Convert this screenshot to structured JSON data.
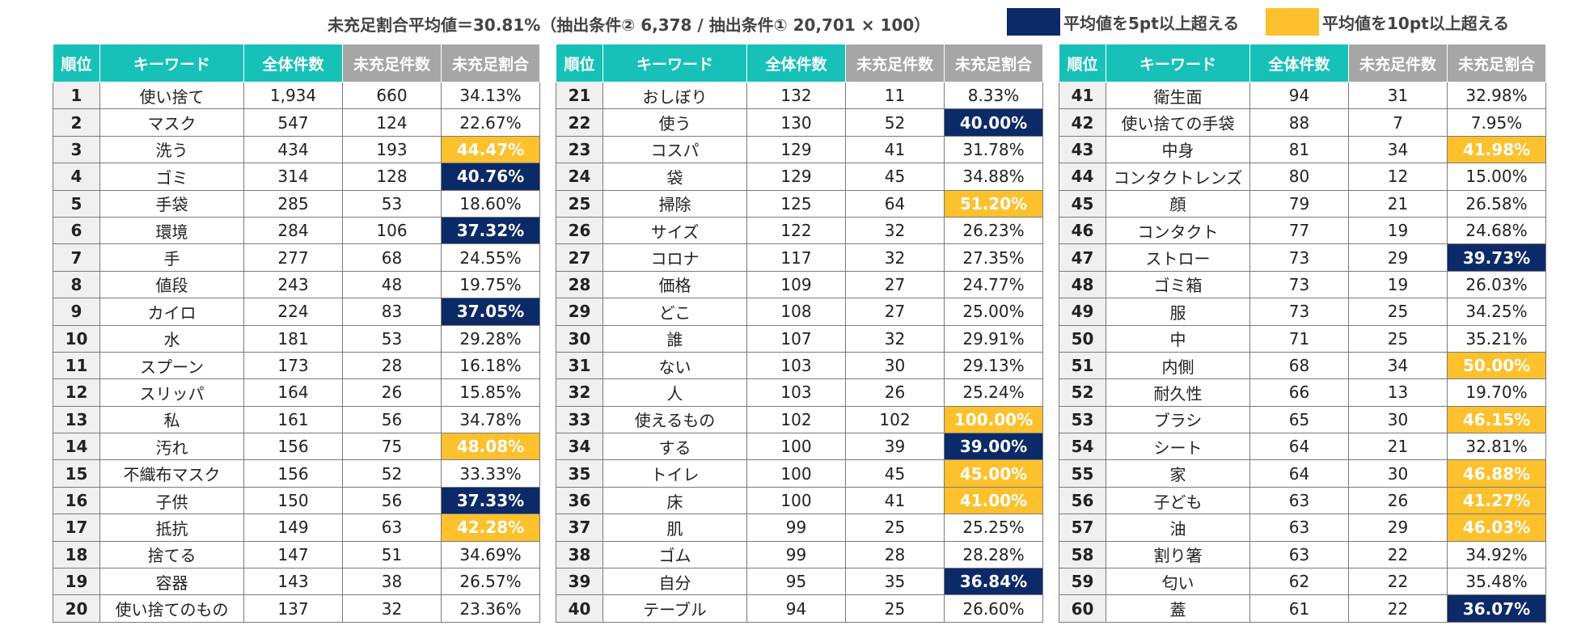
{
  "header": {
    "formula": "未充足割合平均値＝30.81%（抽出条件② 6,378 / 抽出条件① 20,701 × 100）",
    "legend": [
      {
        "label": "平均値を5pt以上超える",
        "color": "#0b2a67"
      },
      {
        "label": "平均値を10pt以上超える",
        "color": "#fcc12d"
      }
    ]
  },
  "columns": [
    "順位",
    "キーワード",
    "全体件数",
    "未充足件数",
    "未充足割合"
  ],
  "colors": {
    "header_teal": "#17c1b8",
    "header_gray": "#a6a6a6",
    "navy": "#0b2a67",
    "yellow": "#fcc12d"
  },
  "tables": [
    {
      "rows": [
        {
          "rank": "1",
          "keyword": "使い捨て",
          "total": "1,934",
          "unmet": "660",
          "rate": "34.13%",
          "hl": ""
        },
        {
          "rank": "2",
          "keyword": "マスク",
          "total": "547",
          "unmet": "124",
          "rate": "22.67%",
          "hl": ""
        },
        {
          "rank": "3",
          "keyword": "洗う",
          "total": "434",
          "unmet": "193",
          "rate": "44.47%",
          "hl": "yellow"
        },
        {
          "rank": "4",
          "keyword": "ゴミ",
          "total": "314",
          "unmet": "128",
          "rate": "40.76%",
          "hl": "navy"
        },
        {
          "rank": "5",
          "keyword": "手袋",
          "total": "285",
          "unmet": "53",
          "rate": "18.60%",
          "hl": ""
        },
        {
          "rank": "6",
          "keyword": "環境",
          "total": "284",
          "unmet": "106",
          "rate": "37.32%",
          "hl": "navy"
        },
        {
          "rank": "7",
          "keyword": "手",
          "total": "277",
          "unmet": "68",
          "rate": "24.55%",
          "hl": ""
        },
        {
          "rank": "8",
          "keyword": "値段",
          "total": "243",
          "unmet": "48",
          "rate": "19.75%",
          "hl": ""
        },
        {
          "rank": "9",
          "keyword": "カイロ",
          "total": "224",
          "unmet": "83",
          "rate": "37.05%",
          "hl": "navy"
        },
        {
          "rank": "10",
          "keyword": "水",
          "total": "181",
          "unmet": "53",
          "rate": "29.28%",
          "hl": ""
        },
        {
          "rank": "11",
          "keyword": "スプーン",
          "total": "173",
          "unmet": "28",
          "rate": "16.18%",
          "hl": ""
        },
        {
          "rank": "12",
          "keyword": "スリッパ",
          "total": "164",
          "unmet": "26",
          "rate": "15.85%",
          "hl": ""
        },
        {
          "rank": "13",
          "keyword": "私",
          "total": "161",
          "unmet": "56",
          "rate": "34.78%",
          "hl": ""
        },
        {
          "rank": "14",
          "keyword": "汚れ",
          "total": "156",
          "unmet": "75",
          "rate": "48.08%",
          "hl": "yellow"
        },
        {
          "rank": "15",
          "keyword": "不織布マスク",
          "total": "156",
          "unmet": "52",
          "rate": "33.33%",
          "hl": ""
        },
        {
          "rank": "16",
          "keyword": "子供",
          "total": "150",
          "unmet": "56",
          "rate": "37.33%",
          "hl": "navy"
        },
        {
          "rank": "17",
          "keyword": "抵抗",
          "total": "149",
          "unmet": "63",
          "rate": "42.28%",
          "hl": "yellow"
        },
        {
          "rank": "18",
          "keyword": "捨てる",
          "total": "147",
          "unmet": "51",
          "rate": "34.69%",
          "hl": ""
        },
        {
          "rank": "19",
          "keyword": "容器",
          "total": "143",
          "unmet": "38",
          "rate": "26.57%",
          "hl": ""
        },
        {
          "rank": "20",
          "keyword": "使い捨てのもの",
          "total": "137",
          "unmet": "32",
          "rate": "23.36%",
          "hl": ""
        }
      ]
    },
    {
      "rows": [
        {
          "rank": "21",
          "keyword": "おしぼり",
          "total": "132",
          "unmet": "11",
          "rate": "8.33%",
          "hl": ""
        },
        {
          "rank": "22",
          "keyword": "使う",
          "total": "130",
          "unmet": "52",
          "rate": "40.00%",
          "hl": "navy"
        },
        {
          "rank": "23",
          "keyword": "コスパ",
          "total": "129",
          "unmet": "41",
          "rate": "31.78%",
          "hl": ""
        },
        {
          "rank": "24",
          "keyword": "袋",
          "total": "129",
          "unmet": "45",
          "rate": "34.88%",
          "hl": ""
        },
        {
          "rank": "25",
          "keyword": "掃除",
          "total": "125",
          "unmet": "64",
          "rate": "51.20%",
          "hl": "yellow"
        },
        {
          "rank": "26",
          "keyword": "サイズ",
          "total": "122",
          "unmet": "32",
          "rate": "26.23%",
          "hl": ""
        },
        {
          "rank": "27",
          "keyword": "コロナ",
          "total": "117",
          "unmet": "32",
          "rate": "27.35%",
          "hl": ""
        },
        {
          "rank": "28",
          "keyword": "価格",
          "total": "109",
          "unmet": "27",
          "rate": "24.77%",
          "hl": ""
        },
        {
          "rank": "29",
          "keyword": "どこ",
          "total": "108",
          "unmet": "27",
          "rate": "25.00%",
          "hl": ""
        },
        {
          "rank": "30",
          "keyword": "誰",
          "total": "107",
          "unmet": "32",
          "rate": "29.91%",
          "hl": ""
        },
        {
          "rank": "31",
          "keyword": "ない",
          "total": "103",
          "unmet": "30",
          "rate": "29.13%",
          "hl": ""
        },
        {
          "rank": "32",
          "keyword": "人",
          "total": "103",
          "unmet": "26",
          "rate": "25.24%",
          "hl": ""
        },
        {
          "rank": "33",
          "keyword": "使えるもの",
          "total": "102",
          "unmet": "102",
          "rate": "100.00%",
          "hl": "yellow"
        },
        {
          "rank": "34",
          "keyword": "する",
          "total": "100",
          "unmet": "39",
          "rate": "39.00%",
          "hl": "navy"
        },
        {
          "rank": "35",
          "keyword": "トイレ",
          "total": "100",
          "unmet": "45",
          "rate": "45.00%",
          "hl": "yellow"
        },
        {
          "rank": "36",
          "keyword": "床",
          "total": "100",
          "unmet": "41",
          "rate": "41.00%",
          "hl": "yellow"
        },
        {
          "rank": "37",
          "keyword": "肌",
          "total": "99",
          "unmet": "25",
          "rate": "25.25%",
          "hl": ""
        },
        {
          "rank": "38",
          "keyword": "ゴム",
          "total": "99",
          "unmet": "28",
          "rate": "28.28%",
          "hl": ""
        },
        {
          "rank": "39",
          "keyword": "自分",
          "total": "95",
          "unmet": "35",
          "rate": "36.84%",
          "hl": "navy"
        },
        {
          "rank": "40",
          "keyword": "テーブル",
          "total": "94",
          "unmet": "25",
          "rate": "26.60%",
          "hl": ""
        }
      ]
    },
    {
      "rows": [
        {
          "rank": "41",
          "keyword": "衛生面",
          "total": "94",
          "unmet": "31",
          "rate": "32.98%",
          "hl": ""
        },
        {
          "rank": "42",
          "keyword": "使い捨ての手袋",
          "total": "88",
          "unmet": "7",
          "rate": "7.95%",
          "hl": ""
        },
        {
          "rank": "43",
          "keyword": "中身",
          "total": "81",
          "unmet": "34",
          "rate": "41.98%",
          "hl": "yellow"
        },
        {
          "rank": "44",
          "keyword": "コンタクトレンズ",
          "total": "80",
          "unmet": "12",
          "rate": "15.00%",
          "hl": ""
        },
        {
          "rank": "45",
          "keyword": "顔",
          "total": "79",
          "unmet": "21",
          "rate": "26.58%",
          "hl": ""
        },
        {
          "rank": "46",
          "keyword": "コンタクト",
          "total": "77",
          "unmet": "19",
          "rate": "24.68%",
          "hl": ""
        },
        {
          "rank": "47",
          "keyword": "ストロー",
          "total": "73",
          "unmet": "29",
          "rate": "39.73%",
          "hl": "navy"
        },
        {
          "rank": "48",
          "keyword": "ゴミ箱",
          "total": "73",
          "unmet": "19",
          "rate": "26.03%",
          "hl": ""
        },
        {
          "rank": "49",
          "keyword": "服",
          "total": "73",
          "unmet": "25",
          "rate": "34.25%",
          "hl": ""
        },
        {
          "rank": "50",
          "keyword": "中",
          "total": "71",
          "unmet": "25",
          "rate": "35.21%",
          "hl": ""
        },
        {
          "rank": "51",
          "keyword": "内側",
          "total": "68",
          "unmet": "34",
          "rate": "50.00%",
          "hl": "yellow"
        },
        {
          "rank": "52",
          "keyword": "耐久性",
          "total": "66",
          "unmet": "13",
          "rate": "19.70%",
          "hl": ""
        },
        {
          "rank": "53",
          "keyword": "ブラシ",
          "total": "65",
          "unmet": "30",
          "rate": "46.15%",
          "hl": "yellow"
        },
        {
          "rank": "54",
          "keyword": "シート",
          "total": "64",
          "unmet": "21",
          "rate": "32.81%",
          "hl": ""
        },
        {
          "rank": "55",
          "keyword": "家",
          "total": "64",
          "unmet": "30",
          "rate": "46.88%",
          "hl": "yellow"
        },
        {
          "rank": "56",
          "keyword": "子ども",
          "total": "63",
          "unmet": "26",
          "rate": "41.27%",
          "hl": "yellow"
        },
        {
          "rank": "57",
          "keyword": "油",
          "total": "63",
          "unmet": "29",
          "rate": "46.03%",
          "hl": "yellow"
        },
        {
          "rank": "58",
          "keyword": "割り箸",
          "total": "63",
          "unmet": "22",
          "rate": "34.92%",
          "hl": ""
        },
        {
          "rank": "59",
          "keyword": "匂い",
          "total": "62",
          "unmet": "22",
          "rate": "35.48%",
          "hl": ""
        },
        {
          "rank": "60",
          "keyword": "蓋",
          "total": "61",
          "unmet": "22",
          "rate": "36.07%",
          "hl": "navy"
        }
      ]
    }
  ]
}
